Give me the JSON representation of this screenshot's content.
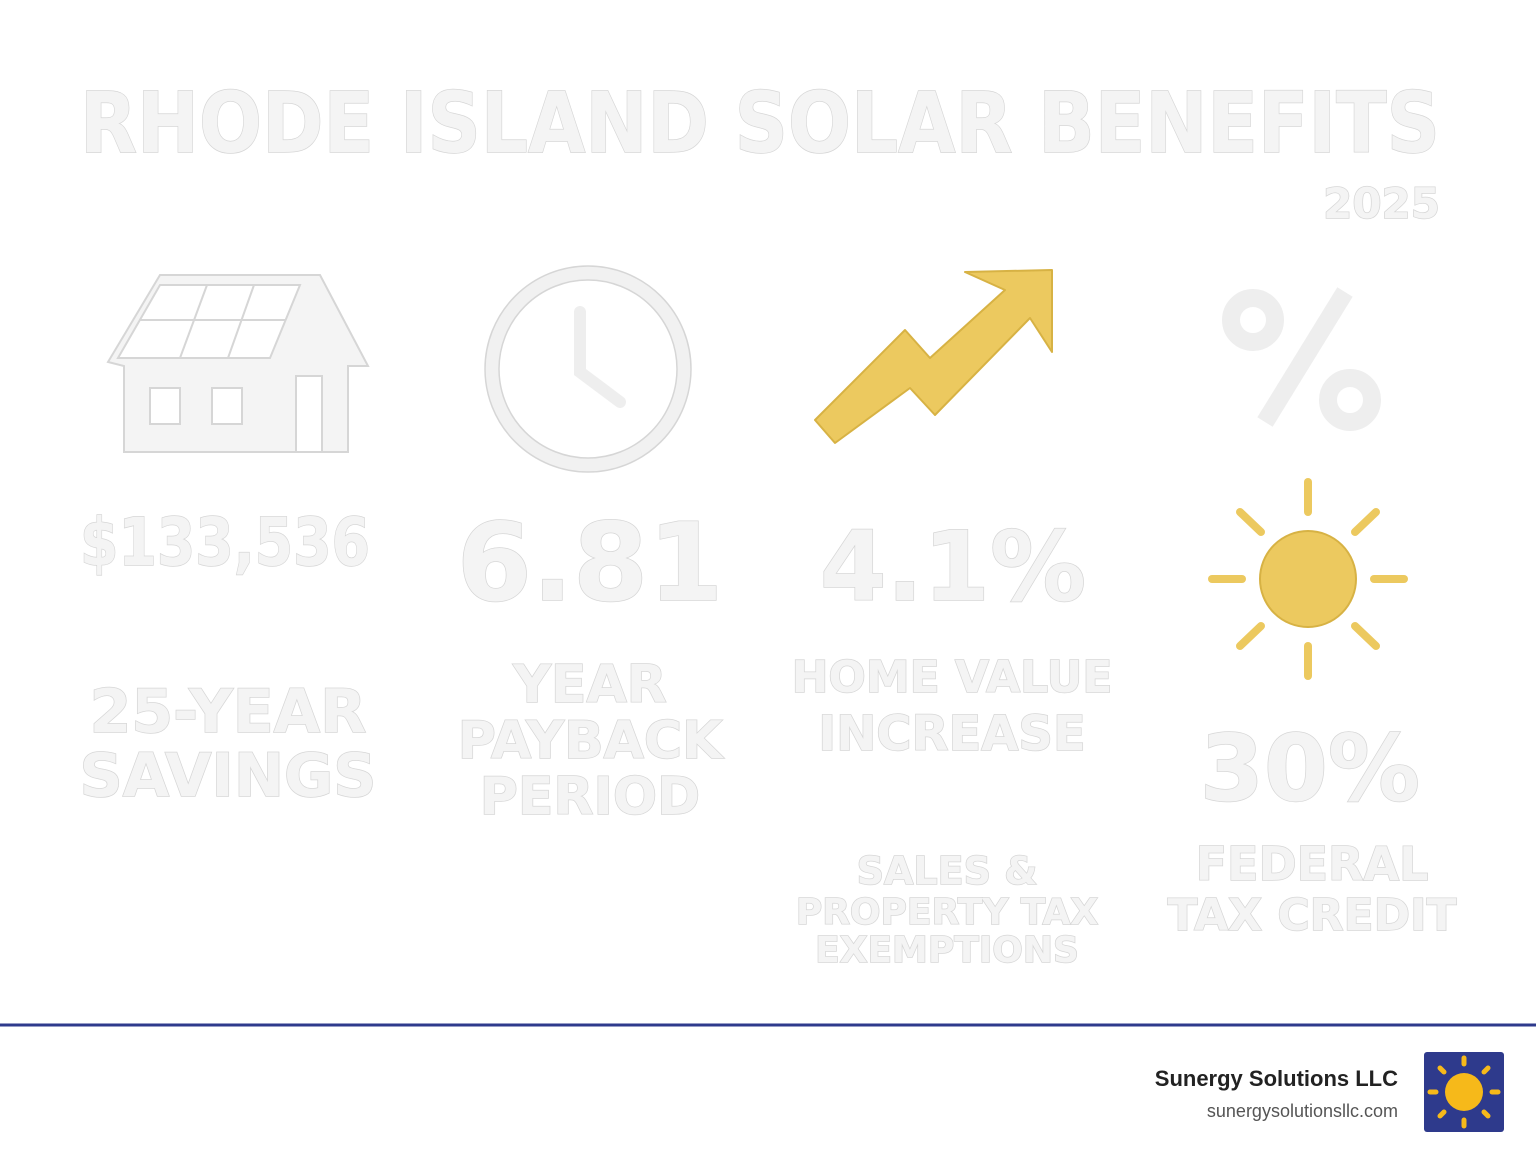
{
  "header": {
    "title": "RHODE ISLAND SOLAR BENEFITS",
    "year": "2025"
  },
  "stats": [
    {
      "value": "$133,536",
      "label": [
        "25-YEAR",
        "SAVINGS"
      ]
    },
    {
      "value": "6.81",
      "label": [
        "YEAR",
        "PAYBACK",
        "PERIOD"
      ]
    },
    {
      "value": "4.1%",
      "label": [
        "HOME VALUE",
        "INCREASE"
      ]
    },
    {
      "value": "30%",
      "label": [
        "FEDERAL",
        "TAX CREDIT"
      ]
    }
  ],
  "extra": [
    "SALES &",
    "PROPERTY TAX",
    "EXEMPTIONS"
  ],
  "footer": {
    "company": "Sunergy Solutions LLC",
    "url": "sunergysolutionsllc.com"
  }
}
